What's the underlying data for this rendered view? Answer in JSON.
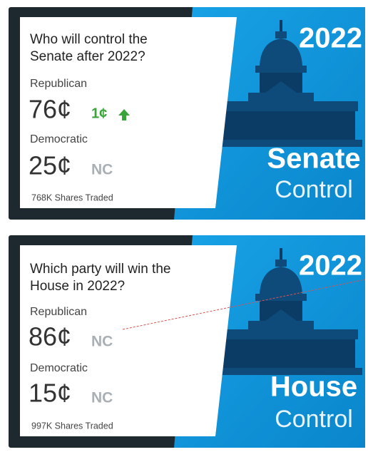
{
  "cards": [
    {
      "question": [
        "Who will control the",
        "Senate after 2022?"
      ],
      "contracts": [
        {
          "name": "Republican",
          "price": "76¢",
          "change": "1¢"
        },
        {
          "name": "Democratic",
          "price": "25¢",
          "change": "NC"
        }
      ],
      "shares": "768K Shares Traded",
      "banner": {
        "year": "2022",
        "title": "Senate",
        "subtitle": "Control"
      }
    },
    {
      "question": [
        "Which party will win the",
        "House in 2022?"
      ],
      "contracts": [
        {
          "name": "Republican",
          "price": "86¢",
          "change": "NC"
        },
        {
          "name": "Democratic",
          "price": "15¢",
          "change": "NC"
        }
      ],
      "shares": "997K Shares Traded",
      "banner": {
        "year": "2022",
        "title": "House",
        "subtitle": "Control"
      }
    }
  ]
}
